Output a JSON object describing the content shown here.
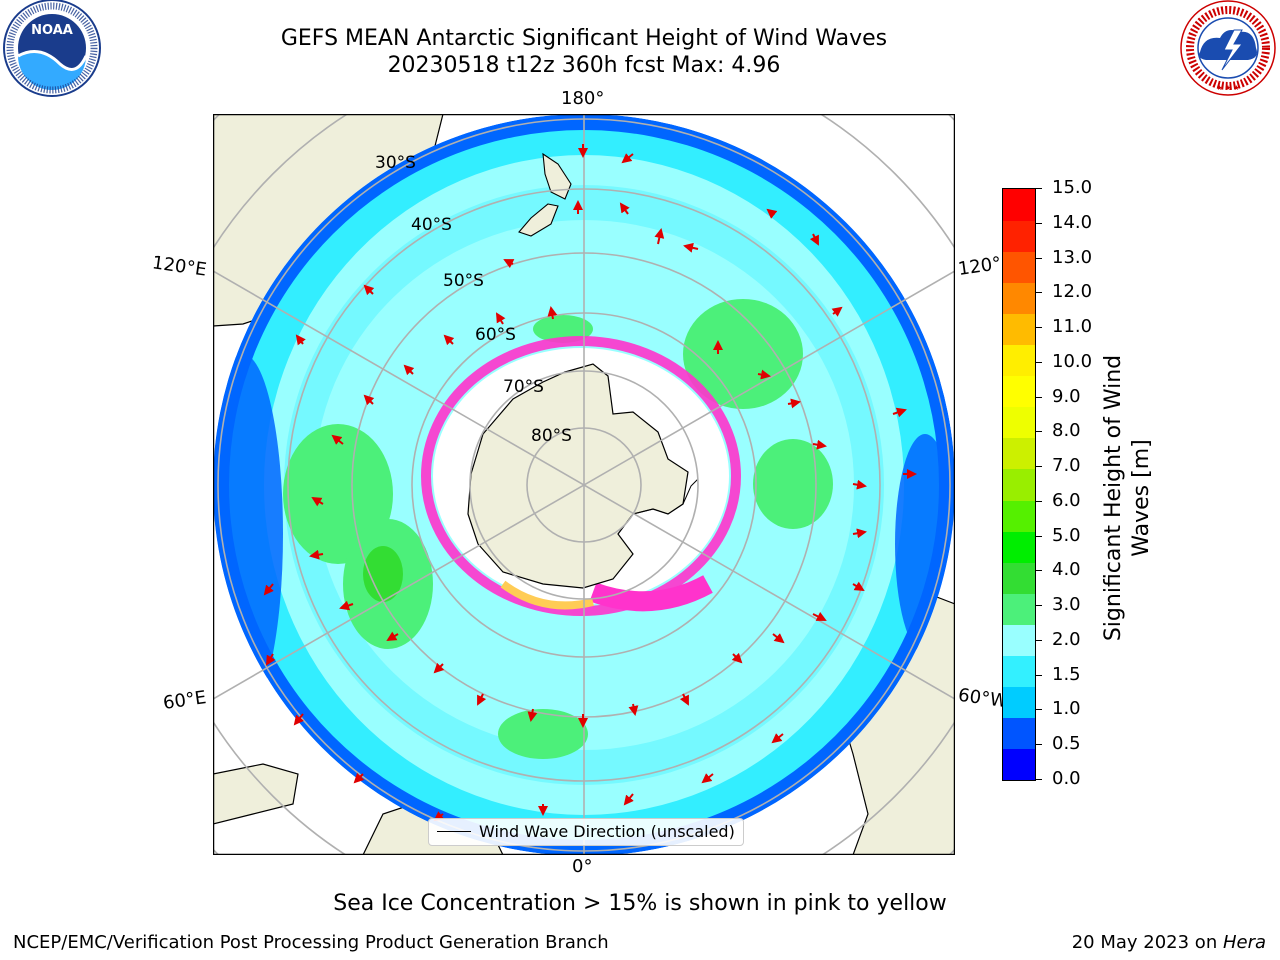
{
  "header": {
    "title_line1": "GEFS MEAN Antarctic Significant Height of Wind Waves",
    "title_line2": "20230518 t12z 360h fcst   Max: 4.96"
  },
  "logos": {
    "noaa_text": "NOAA",
    "noaa_ring_text": "NATIONAL OCEANIC AND ATMOSPHERIC ADMINISTRATION · U.S. DEPARTMENT OF COMMERCE",
    "nws_ring_text": "NATIONAL WEATHER SERVICE"
  },
  "map": {
    "lon_labels": {
      "top": "180°",
      "bottom": "0°",
      "left_upper": "120°E",
      "left_lower": "60°E",
      "right_upper": "120°",
      "right_lower": "60°W"
    },
    "lat_labels": [
      "30°S",
      "40°S",
      "50°S",
      "60°S",
      "70°S",
      "80°S"
    ],
    "legend_label": "Wind Wave Direction (unscaled)"
  },
  "colorbar": {
    "title_line1": "Significant Height of Wind",
    "title_line2": "Waves [m]",
    "ticks": [
      "15.0",
      "14.0",
      "13.0",
      "12.0",
      "11.0",
      "10.0",
      "9.0",
      "8.0",
      "7.0",
      "6.0",
      "5.0",
      "4.0",
      "3.0",
      "2.0",
      "1.5",
      "1.0",
      "0.5",
      "0.0"
    ],
    "colors": [
      "#0000ff",
      "#0055ff",
      "#00ccff",
      "#33f0ff",
      "#99ffff",
      "#4cf07a",
      "#33dd33",
      "#00ee00",
      "#55f000",
      "#99ee00",
      "#ccf000",
      "#eeff00",
      "#ffff00",
      "#ffee00",
      "#ffbb00",
      "#ff8800",
      "#ff5500",
      "#ff2200",
      "#ff0000"
    ]
  },
  "caption": "Sea Ice Concentration > 15% is shown in pink to yellow",
  "footer": {
    "left": "NCEP/EMC/Verification Post Processing Product Generation Branch",
    "right_date": "20 May 2023 on ",
    "right_host": "Hera"
  }
}
